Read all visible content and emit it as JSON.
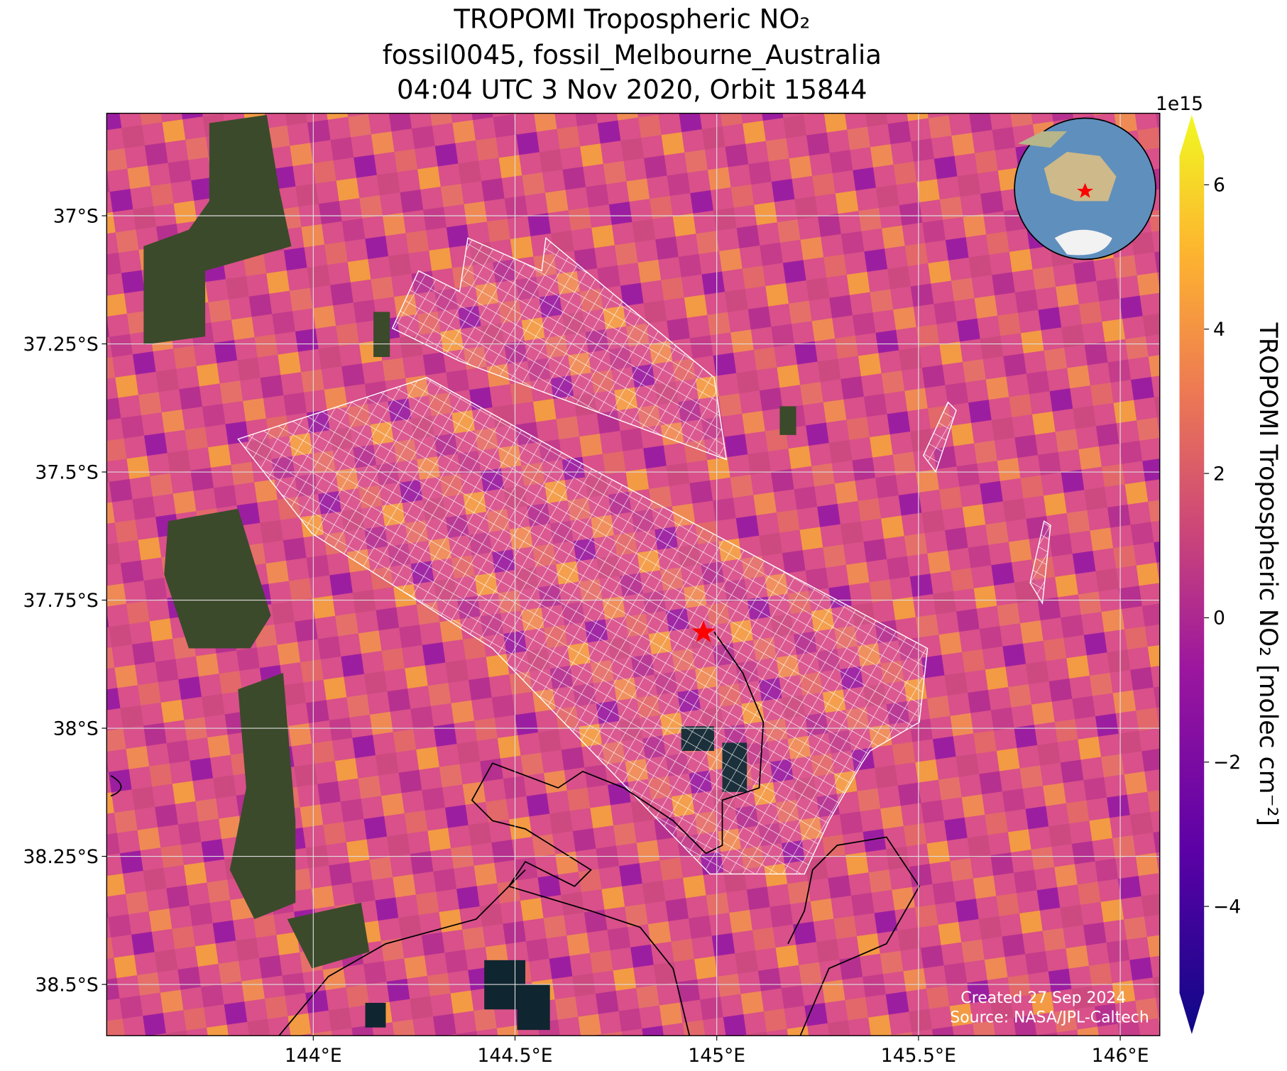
{
  "chart_data": {
    "type": "map",
    "title": [
      "TROPOMI Tropospheric NO₂",
      "fossil0045, fossil_Melbourne_Australia",
      "04:04 UTC 3 Nov 2020, Orbit 15844"
    ],
    "xlim": [
      143.488,
      146.098
    ],
    "ylim": [
      -38.6,
      -36.8
    ],
    "xticks": [
      {
        "value": 144,
        "label": "144°E"
      },
      {
        "value": 144.5,
        "label": "144.5°E"
      },
      {
        "value": 145,
        "label": "145°E"
      },
      {
        "value": 145.5,
        "label": "145.5°E"
      },
      {
        "value": 146,
        "label": "146°E"
      }
    ],
    "yticks": [
      {
        "value": -37,
        "label": "37°S"
      },
      {
        "value": -37.25,
        "label": "37.25°S"
      },
      {
        "value": -37.5,
        "label": "37.5°S"
      },
      {
        "value": -37.75,
        "label": "37.75°S"
      },
      {
        "value": -38,
        "label": "38°S"
      },
      {
        "value": -38.25,
        "label": "38.25°S"
      },
      {
        "value": -38.5,
        "label": "38.5°S"
      }
    ],
    "grid": true,
    "target": {
      "lon": 144.967,
      "lat": -37.813,
      "color": "#ff0000"
    },
    "colorbar": {
      "label": "TROPOMI Tropospheric NO₂ [molec cm⁻²]",
      "offset_label": "1e15",
      "colormap": "plasma",
      "lim": [
        -5.2,
        6.4
      ],
      "ticks": [
        {
          "value": -4,
          "label": "−4"
        },
        {
          "value": -2,
          "label": "−2"
        },
        0,
        2,
        4,
        6
      ]
    },
    "footer": [
      "Created 27 Sep 2024",
      "Source: NASA/JPL-Caltech"
    ]
  }
}
